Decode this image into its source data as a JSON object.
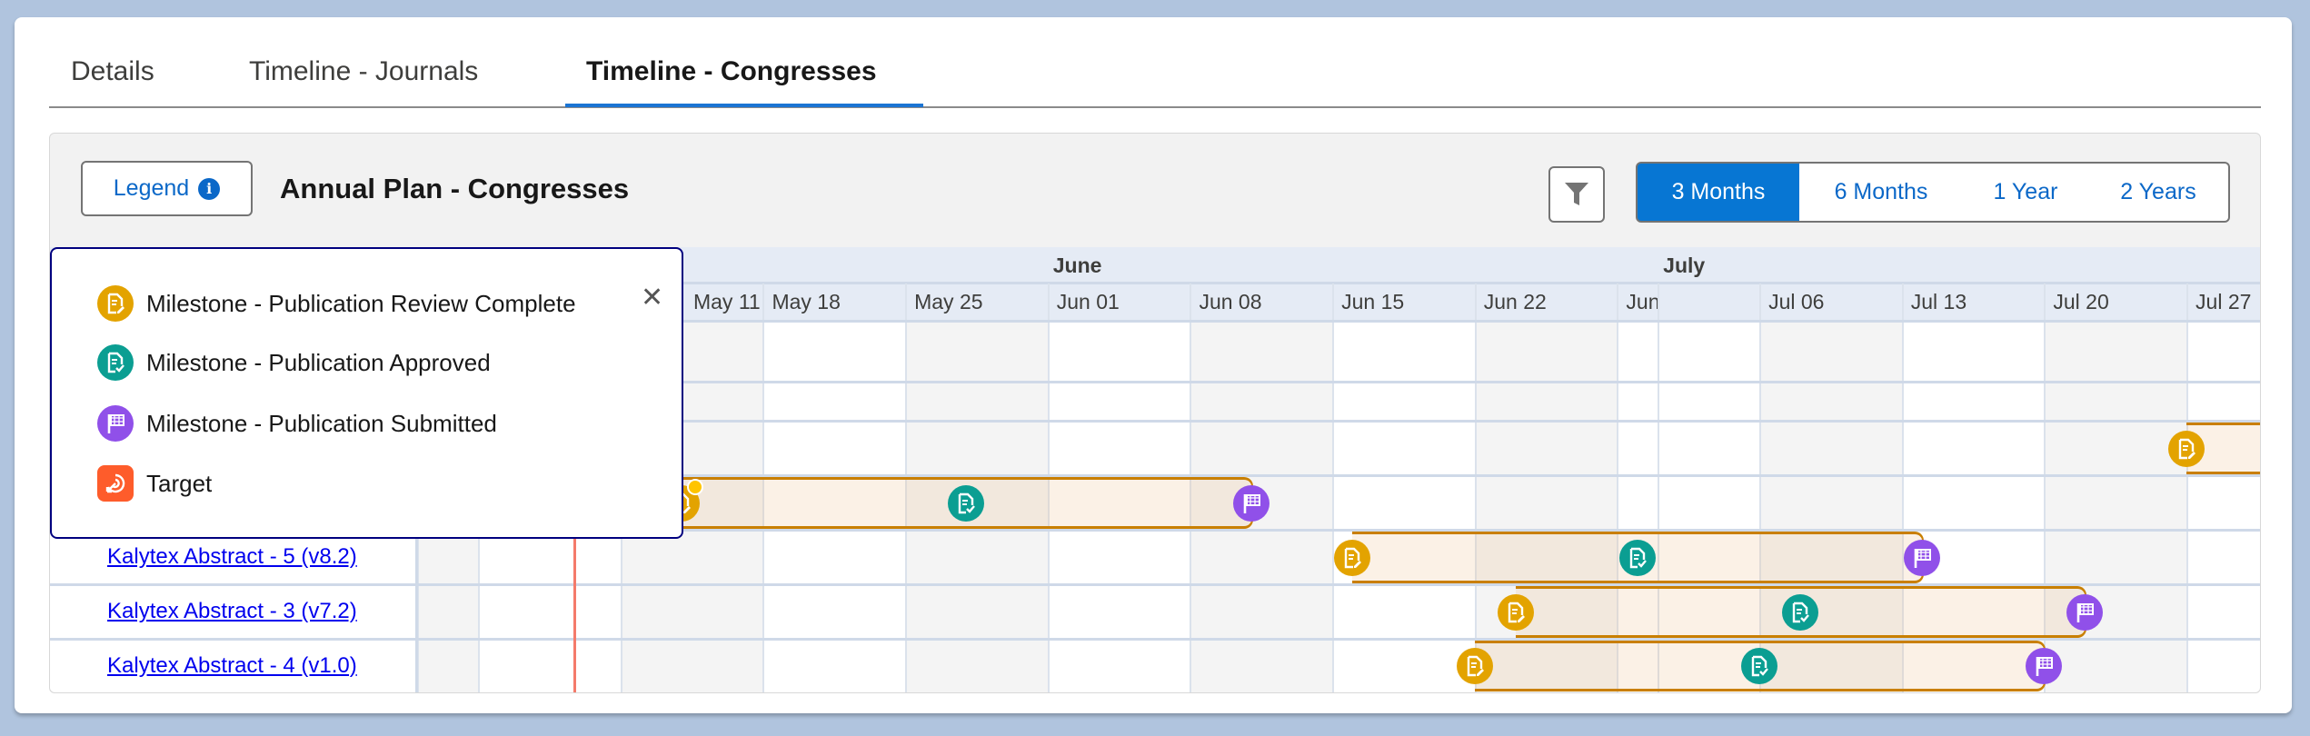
{
  "tabs": [
    {
      "label": "Details",
      "active": false
    },
    {
      "label": "Timeline - Journals",
      "active": false
    },
    {
      "label": "Timeline - Congresses",
      "active": true
    }
  ],
  "toolbar": {
    "legend_label": "Legend",
    "legend_icon": "info-icon",
    "title": "Annual Plan - Congresses",
    "filter_icon": "filter-icon",
    "ranges": [
      {
        "label": "3 Months",
        "active": true
      },
      {
        "label": "6 Months",
        "active": false
      },
      {
        "label": "1 Year",
        "active": false
      },
      {
        "label": "2 Years",
        "active": false
      }
    ]
  },
  "legend": {
    "items": [
      {
        "label": "Milestone - Publication Review Complete",
        "color": "#e3a300",
        "icon": "document-edit-icon"
      },
      {
        "label": "Milestone - Publication Approved",
        "color": "#0b9e92",
        "icon": "document-check-icon"
      },
      {
        "label": "Milestone - Publication Submitted",
        "color": "#9050e9",
        "icon": "flag-icon"
      },
      {
        "label": "Target",
        "color": "#fe5c2b",
        "icon": "target-icon"
      }
    ],
    "close_icon": "close-icon"
  },
  "timeline": {
    "months": [
      {
        "label": "June",
        "start": "Jun 1"
      },
      {
        "label": "July",
        "start": "Jul 1"
      }
    ],
    "weeks": [
      {
        "label": "",
        "start": "May 1",
        "shaded": true
      },
      {
        "label": "",
        "start": "May 4",
        "shaded": false
      },
      {
        "label": "May 11",
        "start": "May 11",
        "shaded": true
      },
      {
        "label": "May 18",
        "start": "May 18",
        "shaded": false
      },
      {
        "label": "May 25",
        "start": "May 25",
        "shaded": true
      },
      {
        "label": "Jun 01",
        "start": "Jun 1",
        "shaded": false
      },
      {
        "label": "Jun 08",
        "start": "Jun 8",
        "shaded": true
      },
      {
        "label": "Jun 15",
        "start": "Jun 15",
        "shaded": false
      },
      {
        "label": "Jun 22",
        "start": "Jun 22",
        "shaded": true
      },
      {
        "label": "Jun",
        "start": "Jun 29",
        "shaded": false
      },
      {
        "label": "",
        "start": "Jul 1",
        "shaded": false
      },
      {
        "label": "Jul 06",
        "start": "Jul 6",
        "shaded": true
      },
      {
        "label": "Jul 13",
        "start": "Jul 13",
        "shaded": false
      },
      {
        "label": "Jul 20",
        "start": "Jul 20",
        "shaded": true
      },
      {
        "label": "Jul 27",
        "start": "Jul 27",
        "shaded": false
      }
    ],
    "today": "May 8",
    "today_color": "#f47b6b",
    "bar_border_color": "#c97f00",
    "rows": [
      {
        "label": "",
        "bar": null
      },
      {
        "label": "",
        "bar": null
      },
      {
        "label": "",
        "bar": {
          "start": "Jul 27",
          "end": null,
          "milestones": [
            {
              "type": 0,
              "date": "Jul 27"
            }
          ]
        }
      },
      {
        "label": "",
        "bar": {
          "start": "May 14",
          "end": "Jun 11",
          "indicator": true,
          "milestones": [
            {
              "type": 0,
              "date": "May 14"
            },
            {
              "type": 1,
              "date": "May 28"
            },
            {
              "type": 2,
              "date": "Jun 11"
            }
          ]
        }
      },
      {
        "label": "Kalytex Abstract - 5 (v8.2)",
        "bar": {
          "start": "Jun 16",
          "end": "Jul 14",
          "milestones": [
            {
              "type": 0,
              "date": "Jun 16"
            },
            {
              "type": 1,
              "date": "Jun 30"
            },
            {
              "type": 2,
              "date": "Jul 14"
            }
          ]
        }
      },
      {
        "label": "Kalytex Abstract - 3 (v7.2)",
        "bar": {
          "start": "Jun 24",
          "end": "Jul 22",
          "milestones": [
            {
              "type": 0,
              "date": "Jun 24"
            },
            {
              "type": 1,
              "date": "Jul 8"
            },
            {
              "type": 2,
              "date": "Jul 22"
            }
          ]
        }
      },
      {
        "label": "Kalytex Abstract - 4 (v1.0)",
        "bar": {
          "start": "Jun 22",
          "end": "Jul 20",
          "milestones": [
            {
              "type": 0,
              "date": "Jun 22"
            },
            {
              "type": 1,
              "date": "Jul 6"
            },
            {
              "type": 2,
              "date": "Jul 20"
            }
          ]
        }
      }
    ]
  }
}
